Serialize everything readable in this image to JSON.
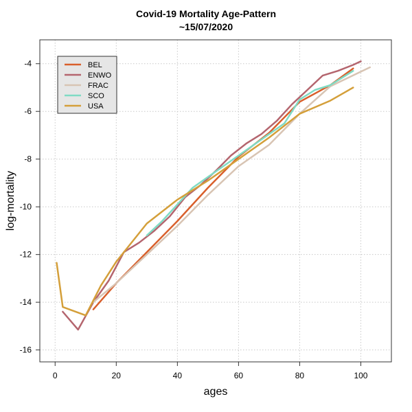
{
  "chart_data": {
    "type": "line",
    "title": "Covid-19 Mortality Age-Pattern",
    "subtitle": "~15/07/2020",
    "xlabel": "ages",
    "ylabel": "log-mortality",
    "xlim": [
      -5,
      110
    ],
    "ylim": [
      -16.5,
      -3
    ],
    "xticks": [
      0,
      20,
      40,
      60,
      80,
      100
    ],
    "yticks": [
      -16,
      -14,
      -12,
      -10,
      -8,
      -6,
      -4
    ],
    "grid": true,
    "legend_position": "top-left",
    "series": [
      {
        "name": "BEL",
        "color": "#d95f2b",
        "points": [
          [
            12.5,
            -14.3
          ],
          [
            20,
            -13.2
          ],
          [
            30,
            -11.9
          ],
          [
            40,
            -10.6
          ],
          [
            50,
            -9.2
          ],
          [
            60,
            -7.9
          ],
          [
            70,
            -6.9
          ],
          [
            80,
            -5.6
          ],
          [
            90,
            -4.9
          ],
          [
            97.5,
            -4.2
          ]
        ]
      },
      {
        "name": "ENWO",
        "color": "#b4656e",
        "points": [
          [
            2.5,
            -14.4
          ],
          [
            7.5,
            -15.15
          ],
          [
            12.5,
            -14.0
          ],
          [
            17.5,
            -13.1
          ],
          [
            22.5,
            -11.9
          ],
          [
            27.5,
            -11.5
          ],
          [
            32.5,
            -11.0
          ],
          [
            37.5,
            -10.4
          ],
          [
            42.5,
            -9.6
          ],
          [
            47.5,
            -9.1
          ],
          [
            52.5,
            -8.5
          ],
          [
            57.5,
            -7.85
          ],
          [
            62.5,
            -7.35
          ],
          [
            67.5,
            -6.95
          ],
          [
            72.5,
            -6.4
          ],
          [
            77.5,
            -5.7
          ],
          [
            82.5,
            -5.1
          ],
          [
            87.5,
            -4.5
          ],
          [
            92.5,
            -4.3
          ],
          [
            97.5,
            -4.05
          ],
          [
            100,
            -3.9
          ]
        ]
      },
      {
        "name": "FRAC",
        "color": "#d8c4b3",
        "points": [
          [
            12.5,
            -14.0
          ],
          [
            20,
            -13.2
          ],
          [
            30,
            -12.0
          ],
          [
            40,
            -10.8
          ],
          [
            50,
            -9.5
          ],
          [
            60,
            -8.3
          ],
          [
            70,
            -7.4
          ],
          [
            80,
            -6.1
          ],
          [
            90,
            -4.95
          ],
          [
            103,
            -4.15
          ]
        ]
      },
      {
        "name": "SCO",
        "color": "#7fdbc4",
        "points": [
          [
            30,
            -11.2
          ],
          [
            35,
            -10.6
          ],
          [
            45,
            -9.2
          ],
          [
            55,
            -8.3
          ],
          [
            65,
            -7.4
          ],
          [
            75,
            -6.5
          ],
          [
            80,
            -5.5
          ],
          [
            85,
            -5.1
          ],
          [
            90,
            -4.9
          ],
          [
            97.5,
            -4.3
          ]
        ]
      },
      {
        "name": "USA",
        "color": "#d49f3a",
        "points": [
          [
            0.5,
            -12.35
          ],
          [
            2.5,
            -14.2
          ],
          [
            10,
            -14.55
          ],
          [
            15,
            -13.3
          ],
          [
            20,
            -12.3
          ],
          [
            30,
            -10.7
          ],
          [
            40,
            -9.7
          ],
          [
            50,
            -8.9
          ],
          [
            60,
            -8.0
          ],
          [
            70,
            -7.1
          ],
          [
            80,
            -6.1
          ],
          [
            90,
            -5.55
          ],
          [
            97.5,
            -5.0
          ]
        ]
      }
    ]
  }
}
